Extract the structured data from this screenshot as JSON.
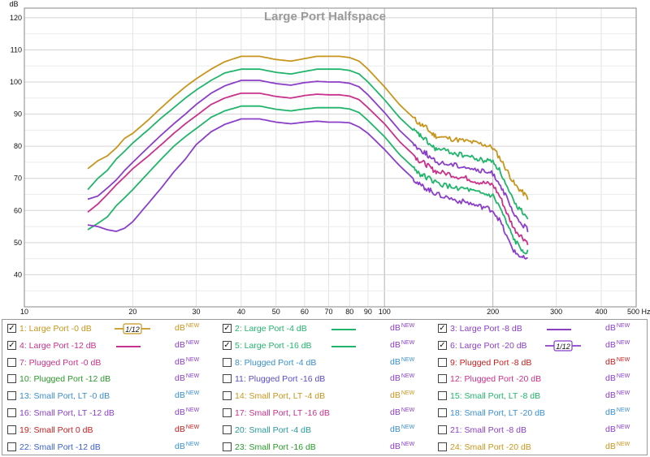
{
  "chart_data": {
    "type": "line",
    "title": "Large Port Halfspace",
    "ylabel": "dB",
    "xunit": "Hz",
    "xscale": "log",
    "xlim": [
      10,
      500
    ],
    "ylim": [
      30,
      123
    ],
    "grid": true,
    "x_ticks": [
      10,
      20,
      30,
      40,
      50,
      60,
      70,
      80,
      90,
      100,
      200,
      300,
      400,
      500
    ],
    "x_tick_labels": [
      "10",
      "20",
      "30",
      "40",
      "50",
      "60",
      "70",
      "80",
      "90",
      "100",
      "200",
      "300",
      "400",
      "500 Hz"
    ],
    "y_ticks": [
      40,
      50,
      60,
      70,
      80,
      90,
      100,
      110,
      120
    ],
    "x": [
      15,
      16,
      17,
      18,
      19,
      20,
      22,
      24,
      26,
      28,
      30,
      33,
      36,
      40,
      45,
      50,
      55,
      60,
      65,
      70,
      75,
      80,
      85,
      90,
      100,
      110,
      120,
      125,
      130,
      135,
      140,
      150,
      160,
      170,
      180,
      190,
      200,
      210,
      220,
      230,
      240,
      250
    ],
    "series": [
      {
        "name": "1: Large Port -0 dB",
        "color": "#c8961e",
        "values": [
          73.0,
          75.5,
          77.0,
          79.5,
          82.5,
          84.0,
          88.0,
          92.0,
          95.5,
          98.5,
          101.0,
          104.0,
          106.3,
          108.0,
          108.0,
          107.0,
          106.5,
          107.3,
          108.0,
          108.0,
          108.0,
          107.6,
          106.5,
          104.0,
          98.5,
          93.0,
          89.0,
          87.0,
          86.0,
          84.0,
          83.0,
          82.5,
          82.0,
          81.5,
          81.0,
          80.5,
          79.5,
          76.0,
          72.0,
          68.0,
          66.0,
          64.0
        ]
      },
      {
        "name": "2: Large Port -4 dB",
        "color": "#21b56b",
        "values": [
          66.5,
          70.0,
          72.5,
          76.0,
          78.5,
          81.0,
          85.0,
          88.8,
          92.0,
          95.0,
          97.5,
          100.5,
          102.8,
          104.0,
          104.0,
          103.0,
          102.5,
          103.3,
          104.0,
          104.0,
          104.0,
          103.6,
          102.5,
          100.0,
          94.5,
          89.0,
          85.0,
          83.5,
          82.0,
          80.0,
          79.0,
          78.5,
          77.5,
          77.0,
          76.0,
          75.5,
          75.5,
          72.0,
          66.5,
          62.0,
          60.0,
          58.0
        ]
      },
      {
        "name": "3: Large Port -8 dB",
        "color": "#8b3fc8",
        "values": [
          63.5,
          64.5,
          67.0,
          69.5,
          72.5,
          75.0,
          79.5,
          83.5,
          87.0,
          90.0,
          93.0,
          96.5,
          98.8,
          100.5,
          100.5,
          99.5,
          99.0,
          99.8,
          100.2,
          100.0,
          100.0,
          99.6,
          98.5,
          96.0,
          90.5,
          85.0,
          81.0,
          79.0,
          78.0,
          76.0,
          75.0,
          74.5,
          74.0,
          73.5,
          72.5,
          72.0,
          71.5,
          68.0,
          63.0,
          58.0,
          56.0,
          54.0
        ]
      },
      {
        "name": "4: Large Port -12 dB",
        "color": "#c8328c",
        "values": [
          59.5,
          62.0,
          65.0,
          68.0,
          70.5,
          73.0,
          76.8,
          80.5,
          84.0,
          87.0,
          89.5,
          93.0,
          95.0,
          96.5,
          96.5,
          95.5,
          95.0,
          95.8,
          96.2,
          96.0,
          96.0,
          95.6,
          94.5,
          92.0,
          87.0,
          81.5,
          77.5,
          75.5,
          74.5,
          73.0,
          72.0,
          71.5,
          70.5,
          70.0,
          69.0,
          68.5,
          68.0,
          64.0,
          58.5,
          54.0,
          52.0,
          50.0
        ]
      },
      {
        "name": "5: Large Port -16 dB",
        "color": "#21b56b",
        "values": [
          54.0,
          56.0,
          58.0,
          61.5,
          64.0,
          66.5,
          71.5,
          76.0,
          80.0,
          83.0,
          85.5,
          89.0,
          91.0,
          92.5,
          92.5,
          91.5,
          91.0,
          91.6,
          92.0,
          92.0,
          92.0,
          91.6,
          90.5,
          88.0,
          83.0,
          77.5,
          73.5,
          71.5,
          70.5,
          69.5,
          68.5,
          67.5,
          67.0,
          66.5,
          65.5,
          65.0,
          64.5,
          60.5,
          55.0,
          50.5,
          48.0,
          47.0
        ]
      },
      {
        "name": "6: Large Port -20 dB",
        "color": "#8b3fc8",
        "values": [
          55.5,
          55.0,
          54.0,
          53.5,
          54.5,
          56.5,
          62.0,
          67.0,
          72.0,
          76.0,
          80.5,
          84.5,
          86.8,
          88.5,
          88.5,
          87.5,
          87.0,
          87.5,
          87.8,
          87.5,
          87.5,
          87.3,
          86.0,
          84.0,
          79.0,
          74.0,
          70.0,
          68.0,
          67.0,
          66.0,
          65.0,
          64.0,
          63.0,
          62.5,
          61.5,
          61.0,
          60.0,
          56.5,
          51.0,
          47.0,
          45.5,
          44.5
        ]
      }
    ],
    "legend_position": "bottom",
    "legend": [
      {
        "label": "1: Large Port -0 dB",
        "color": "#c8961e",
        "checked": true,
        "swatch": "ref",
        "unit": "dB",
        "unit_sup": "NEW"
      },
      {
        "label": "2: Large Port -4 dB",
        "color": "#21b56b",
        "checked": true,
        "swatch": "line",
        "unit": "dB",
        "unit_sup": "NEW"
      },
      {
        "label": "3: Large Port -8 dB",
        "color": "#8b3fc8",
        "checked": true,
        "swatch": "line",
        "unit": "dB",
        "unit_sup": "NEW"
      },
      {
        "label": "4: Large Port -12 dB",
        "color": "#c8328c",
        "checked": true,
        "swatch": "line",
        "unit": "dB",
        "unit_sup": "NEW"
      },
      {
        "label": "5: Large Port -16 dB",
        "color": "#21b56b",
        "checked": true,
        "swatch": "line",
        "unit": "dB",
        "unit_sup": "NEW"
      },
      {
        "label": "6: Large Port -20 dB",
        "color": "#8b3fc8",
        "checked": true,
        "swatch": "ref",
        "unit": "dB",
        "unit_sup": "NEW"
      },
      {
        "label": "7: Plugged Port -0 dB",
        "color": "#c8328c",
        "checked": false,
        "swatch": "none",
        "unit": "dB",
        "unit_sup": "NEW"
      },
      {
        "label": "8: Plugged Port -4 dB",
        "color": "#3a8fd0",
        "checked": false,
        "swatch": "none",
        "unit": "dB",
        "unit_sup": "NEW"
      },
      {
        "label": "9: Plugged Port -8 dB",
        "color": "#c81e1e",
        "checked": false,
        "swatch": "none",
        "unit": "dB",
        "unit_sup": "NEW"
      },
      {
        "label": "10: Plugged Port -12 dB",
        "color": "#2a9a2a",
        "checked": false,
        "swatch": "none",
        "unit": "dB",
        "unit_sup": "NEW"
      },
      {
        "label": "11: Plugged Port -16 dB",
        "color": "#5a4fc8",
        "checked": false,
        "swatch": "none",
        "unit": "dB",
        "unit_sup": "NEW"
      },
      {
        "label": "12: Plugged Port -20 dB",
        "color": "#c8328c",
        "checked": false,
        "swatch": "none",
        "unit": "dB",
        "unit_sup": "NEW"
      },
      {
        "label": "13: Small Port, LT -0 dB",
        "color": "#3a8fd0",
        "checked": false,
        "swatch": "none",
        "unit": "dB",
        "unit_sup": "NEW"
      },
      {
        "label": "14: Small Port, LT -4 dB",
        "color": "#c8961e",
        "checked": false,
        "swatch": "none",
        "unit": "dB",
        "unit_sup": "NEW"
      },
      {
        "label": "15: Small Port, LT -8 dB",
        "color": "#21b56b",
        "checked": false,
        "swatch": "none",
        "unit": "dB",
        "unit_sup": "NEW"
      },
      {
        "label": "16: Small Port, LT -12 dB",
        "color": "#8b3fc8",
        "checked": false,
        "swatch": "none",
        "unit": "dB",
        "unit_sup": "NEW"
      },
      {
        "label": "17: Small Port, LT -16 dB",
        "color": "#c8328c",
        "checked": false,
        "swatch": "none",
        "unit": "dB",
        "unit_sup": "NEW"
      },
      {
        "label": "18: Small Port, LT -20 dB",
        "color": "#3a8fd0",
        "checked": false,
        "swatch": "none",
        "unit": "dB",
        "unit_sup": "NEW"
      },
      {
        "label": "19: Small Port 0 dB",
        "color": "#c81e1e",
        "checked": false,
        "swatch": "none",
        "unit": "dB",
        "unit_sup": "NEW"
      },
      {
        "label": "20: Small Port -4 dB",
        "color": "#2a9a9a",
        "checked": false,
        "swatch": "none",
        "unit": "dB",
        "unit_sup": "NEW"
      },
      {
        "label": "21: Small Port -8 dB",
        "color": "#8b3fc8",
        "checked": false,
        "swatch": "none",
        "unit": "dB",
        "unit_sup": "NEW"
      },
      {
        "label": "22: Small Port -12 dB",
        "color": "#3a5fd0",
        "checked": false,
        "swatch": "none",
        "unit": "dB",
        "unit_sup": "NEW"
      },
      {
        "label": "23: Small Port -16 dB",
        "color": "#2a9a2a",
        "checked": false,
        "swatch": "none",
        "unit": "dB",
        "unit_sup": "NEW"
      },
      {
        "label": "24: Small Port -20 dB",
        "color": "#c8961e",
        "checked": false,
        "swatch": "none",
        "unit": "dB",
        "unit_sup": "NEW"
      }
    ],
    "reference_mark": "1/12",
    "unit_color": "#8b3fc8"
  }
}
